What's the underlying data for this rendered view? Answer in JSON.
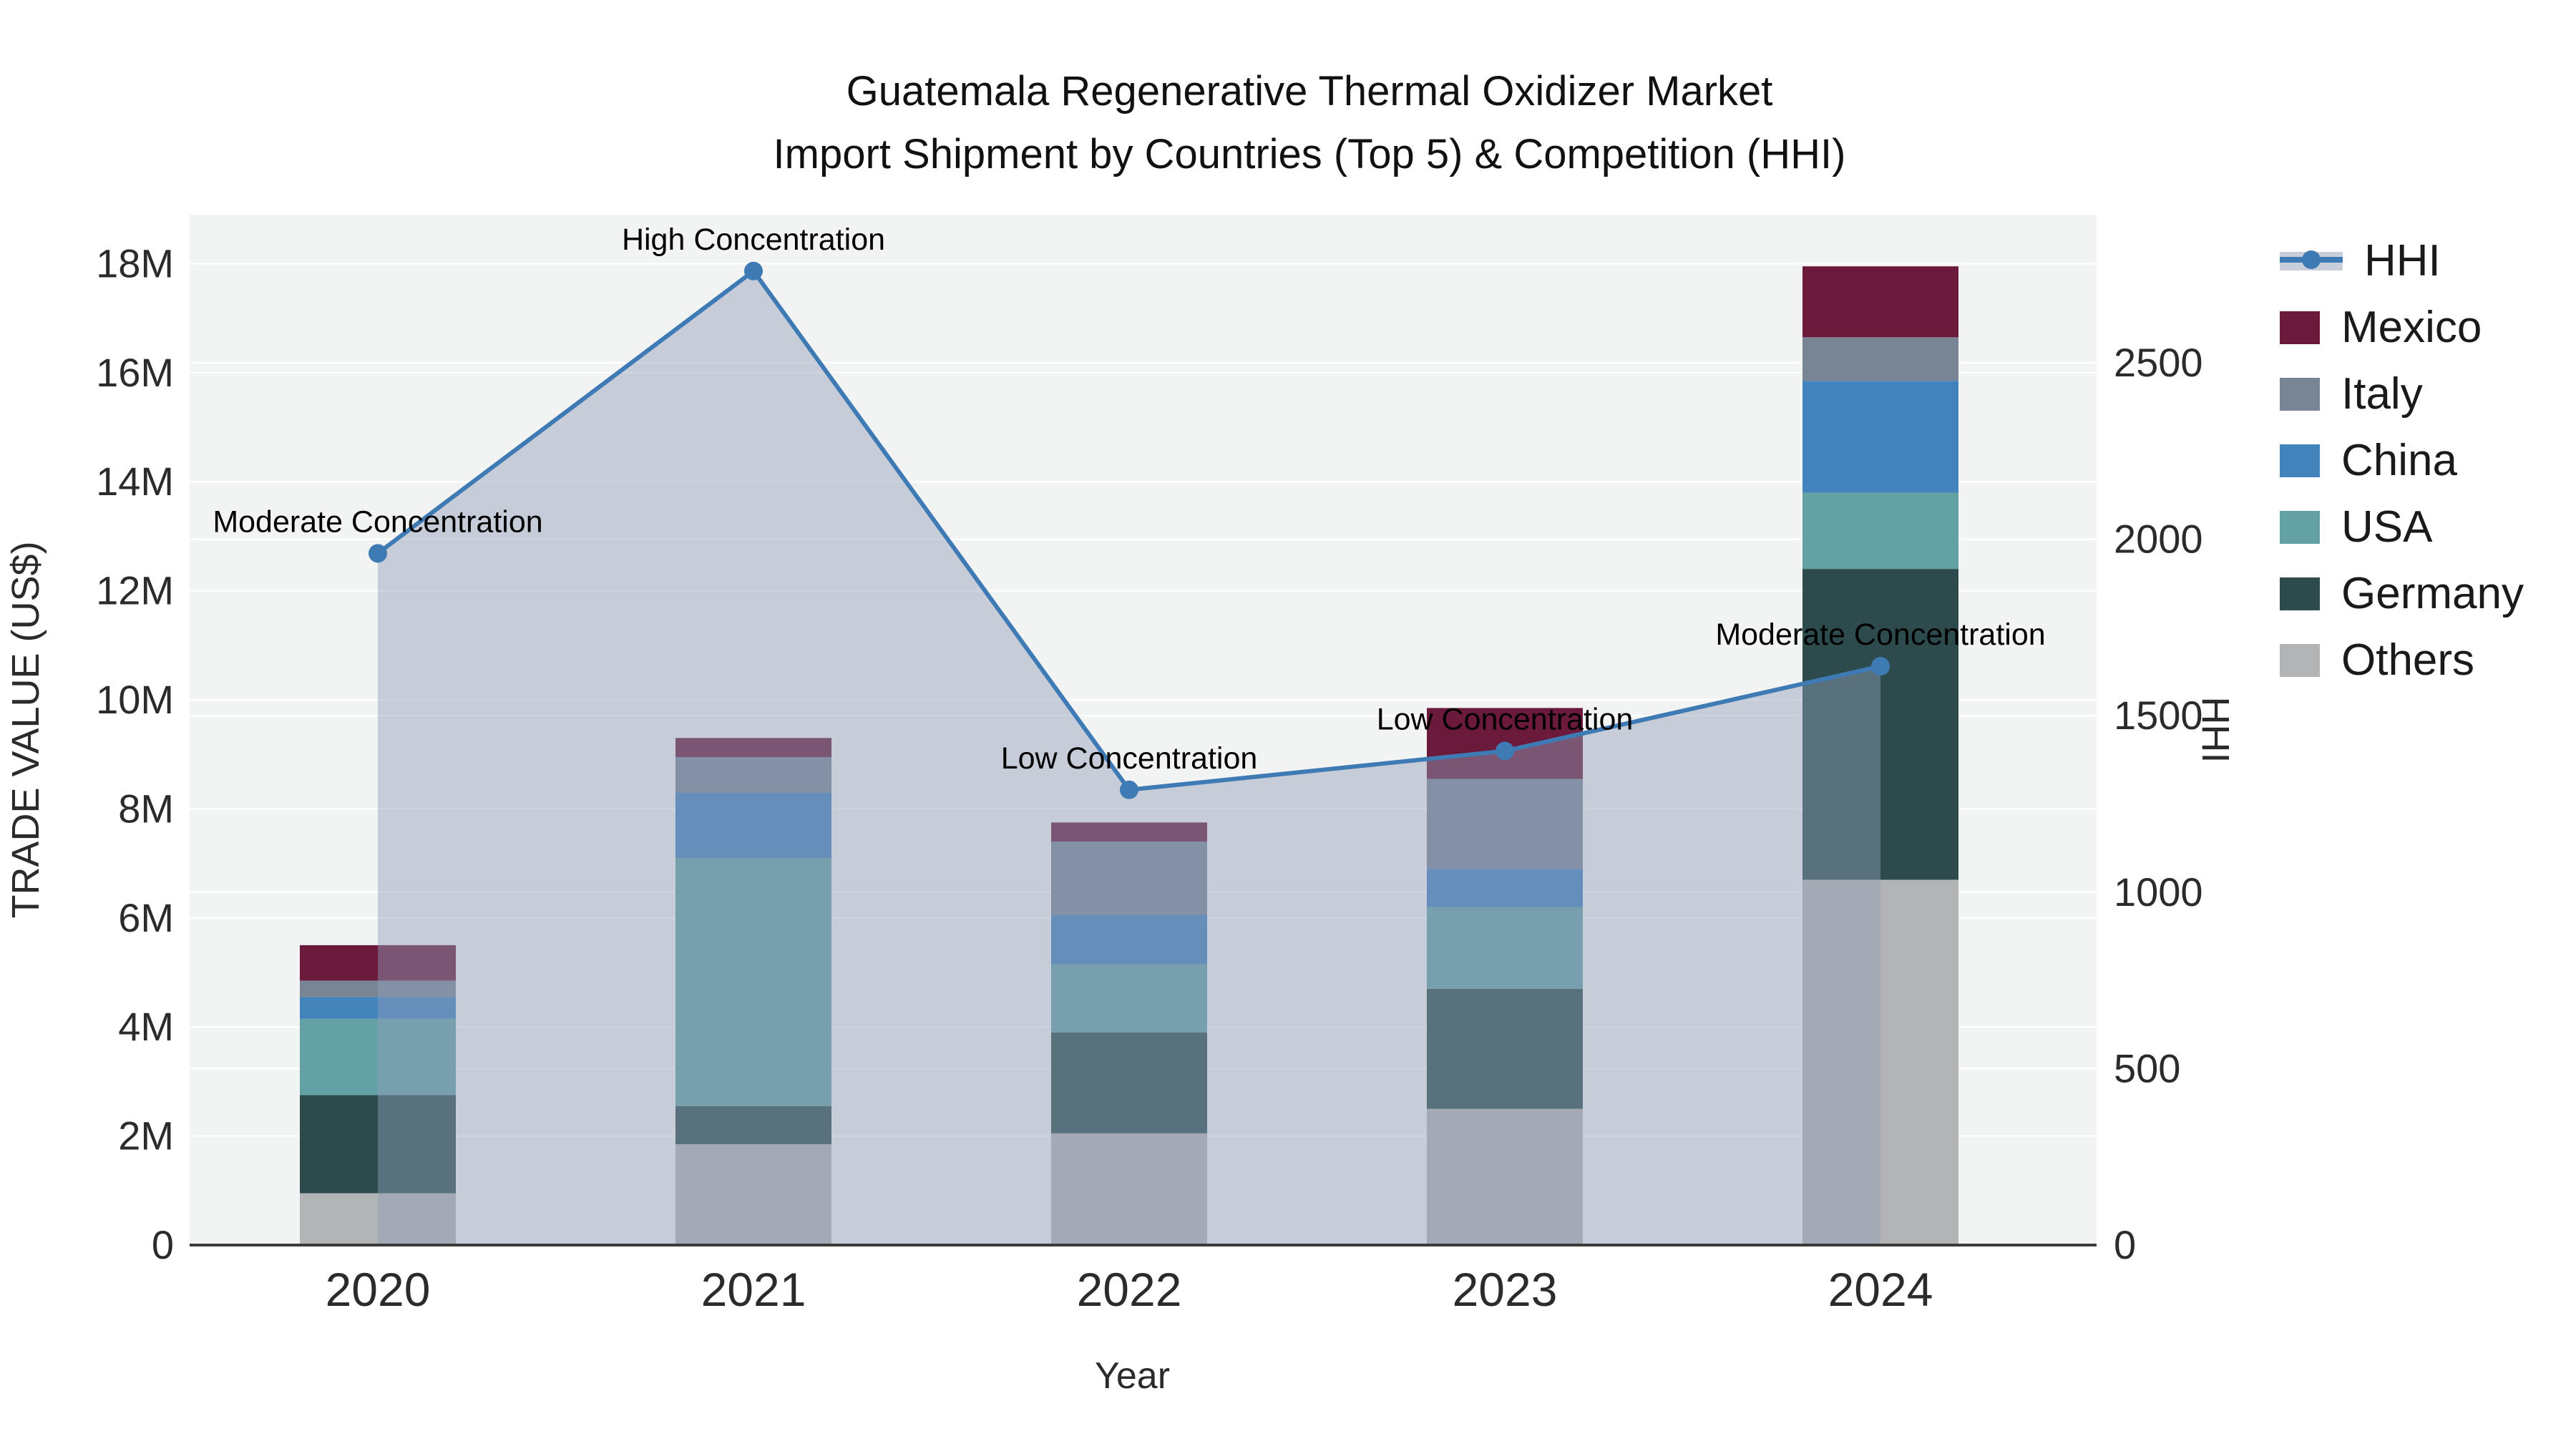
{
  "title": {
    "line1": "Guatemala Regenerative Thermal Oxidizer Market",
    "line2": "Import Shipment by Countries (Top 5) & Competition (HHI)"
  },
  "axes": {
    "y_left": {
      "title": "TRADE VALUE (US$)",
      "tick_labels": [
        "0",
        "2M",
        "4M",
        "6M",
        "8M",
        "10M",
        "12M",
        "14M",
        "16M",
        "18M"
      ],
      "tick_values_musd": [
        0,
        2,
        4,
        6,
        8,
        10,
        12,
        14,
        16,
        18
      ]
    },
    "y_right": {
      "title": "HHI",
      "tick_labels": [
        "0",
        "500",
        "1000",
        "1500",
        "2000",
        "2500"
      ],
      "tick_values": [
        0,
        500,
        1000,
        1500,
        2000,
        2500
      ]
    },
    "x": {
      "title": "Year"
    }
  },
  "legend": {
    "items": [
      {
        "label": "HHI",
        "swatch": "hhi-line"
      },
      {
        "label": "Mexico",
        "swatch": "mexico"
      },
      {
        "label": "Italy",
        "swatch": "italy"
      },
      {
        "label": "China",
        "swatch": "china"
      },
      {
        "label": "USA",
        "swatch": "usa"
      },
      {
        "label": "Germany",
        "swatch": "germany"
      },
      {
        "label": "Others",
        "swatch": "others"
      }
    ]
  },
  "colors": {
    "mexico": "#6B1A3C",
    "italy": "#788595",
    "china": "#4383BC",
    "usa": "#63A1A4",
    "germany": "#2D4B4D",
    "others": "#B2B4B5",
    "hhi_line": "#3E7AB4",
    "hhi_band": "rgba(144,157,183,0.45)",
    "legend_band": "#C9CFDA",
    "plot_bg": "#F2F3F3",
    "grid": "#FFFFFF",
    "axis_line": "#3B3B3B",
    "tick_text": "#2B2B2B",
    "annotation_text": "#000000"
  },
  "chart_data": {
    "type": "combo: stacked bar (left axis) + line with markers and area fill (right axis)",
    "categories": [
      "2020",
      "2021",
      "2022",
      "2023",
      "2024"
    ],
    "unit_left": "Trade value, US$ millions",
    "unit_right": "HHI index",
    "stack_order_bottom_to_top": [
      "Others",
      "Germany",
      "USA",
      "China",
      "Italy",
      "Mexico"
    ],
    "series": [
      {
        "name": "Others",
        "axis": "left",
        "values_musd": [
          0.95,
          1.85,
          2.05,
          2.5,
          6.7
        ]
      },
      {
        "name": "Germany",
        "axis": "left",
        "values_musd": [
          1.8,
          0.7,
          1.85,
          2.2,
          5.7
        ]
      },
      {
        "name": "USA",
        "axis": "left",
        "values_musd": [
          1.4,
          4.55,
          1.25,
          1.5,
          1.4
        ]
      },
      {
        "name": "China",
        "axis": "left",
        "values_musd": [
          0.4,
          1.2,
          0.9,
          0.7,
          2.05
        ]
      },
      {
        "name": "Italy",
        "axis": "left",
        "values_musd": [
          0.3,
          0.65,
          1.35,
          1.65,
          0.8
        ]
      },
      {
        "name": "Mexico",
        "axis": "left",
        "values_musd": [
          0.65,
          0.35,
          0.35,
          1.3,
          1.3
        ]
      }
    ],
    "totals_musd": [
      5.5,
      9.3,
      7.75,
      9.85,
      17.95
    ],
    "hhi": {
      "name": "HHI",
      "axis": "right",
      "values": [
        1960,
        2760,
        1290,
        1400,
        1640
      ],
      "annotations": [
        "Moderate Concentration",
        "High Concentration",
        "Low Concentration",
        "Low Concentration",
        "Moderate Concentration"
      ]
    },
    "ylim_left_musd": [
      0,
      18.9
    ],
    "ylim_right": [
      0,
      2920
    ],
    "grid": true,
    "legend_position": "right"
  }
}
